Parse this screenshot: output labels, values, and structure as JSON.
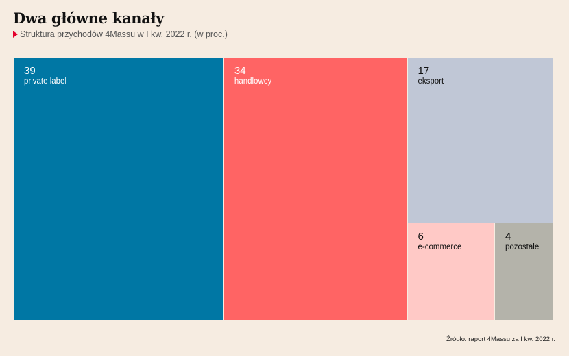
{
  "title": "Dwa główne kanały",
  "subtitle": "Struktura przychodów 4Massu w I kw. 2022 r. (w proc.)",
  "source": "Źródło: raport 4Massu za I kw. 2022 r.",
  "chart_data": {
    "type": "treemap",
    "title": "Dwa główne kanały",
    "subtitle": "Struktura przychodów 4Massu w I kw. 2022 r. (w proc.)",
    "items": [
      {
        "label": "private label",
        "value": 39,
        "color": "#0077a4",
        "text_color": "#ffffff"
      },
      {
        "label": "handlowcy",
        "value": 34,
        "color": "#ff6464",
        "text_color": "#ffffff"
      },
      {
        "label": "eksport",
        "value": 17,
        "color": "#c0c7d6",
        "text_color": "#111111"
      },
      {
        "label": "e-commerce",
        "value": 6,
        "color": "#ffc9c6",
        "text_color": "#111111"
      },
      {
        "label": "pozostałe",
        "value": 4,
        "color": "#b4b3aa",
        "text_color": "#111111"
      }
    ]
  }
}
